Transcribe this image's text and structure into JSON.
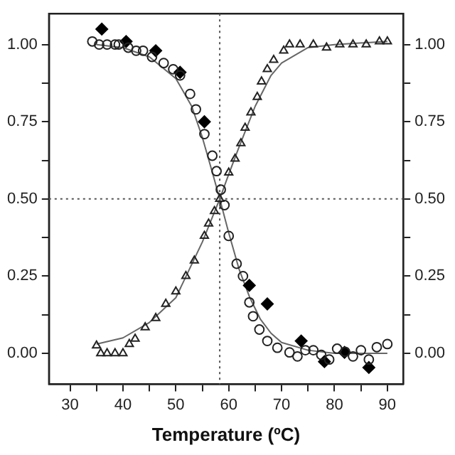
{
  "chart_data": {
    "type": "scatter",
    "xlabel": "Temperature (ºC)",
    "xlim": [
      26,
      93
    ],
    "xticks": [
      30,
      {
        "value": 35,
        "label": null
      },
      40,
      {
        "value": 45,
        "label": null
      },
      50,
      {
        "value": 55,
        "label": null
      },
      60,
      {
        "value": 65,
        "label": null
      },
      70,
      {
        "value": 75,
        "label": null
      },
      80,
      {
        "value": 85,
        "label": null
      },
      90
    ],
    "ylim": [
      -0.1,
      1.1
    ],
    "yticks": [
      {
        "value": 0,
        "label": "0.00"
      },
      {
        "value": 0.125,
        "label": null
      },
      {
        "value": 0.25,
        "label": "0.25"
      },
      {
        "value": 0.375,
        "label": null
      },
      {
        "value": 0.5,
        "label": "0.50"
      },
      {
        "value": 0.625,
        "label": null
      },
      {
        "value": 0.75,
        "label": "0.75"
      },
      {
        "value": 0.875,
        "label": null
      },
      {
        "value": 1,
        "label": "1.00"
      }
    ],
    "y2lim": [
      -0.1,
      1.1
    ],
    "y2ticks": [
      {
        "value": 0,
        "label": "0.00"
      },
      {
        "value": 0.125,
        "label": null
      },
      {
        "value": 0.25,
        "label": "0.25"
      },
      {
        "value": 0.375,
        "label": null
      },
      {
        "value": 0.5,
        "label": "0.50"
      },
      {
        "value": 0.625,
        "label": null
      },
      {
        "value": 0.75,
        "label": "0.75"
      },
      {
        "value": 0.875,
        "label": null
      },
      {
        "value": 1,
        "label": "1.00"
      }
    ],
    "grid": false,
    "legend": false,
    "ref_lines": [
      {
        "axis": "x",
        "value": 58.3,
        "line_style": "dotted",
        "color": "#555555"
      },
      {
        "axis": "y",
        "value": 0.5,
        "line_style": "dotted",
        "color": "#555555"
      }
    ],
    "series": [
      {
        "type": "line",
        "marker": "none",
        "color": "#666666",
        "x": [
          35,
          40,
          45,
          50,
          53,
          55,
          57,
          58.3,
          60,
          62,
          64,
          66,
          68,
          70,
          75,
          80,
          90
        ],
        "values": [
          1.0,
          0.99,
          0.96,
          0.89,
          0.8,
          0.7,
          0.58,
          0.5,
          0.39,
          0.27,
          0.18,
          0.11,
          0.065,
          0.035,
          0.01,
          0.0,
          0.0
        ]
      },
      {
        "type": "line",
        "marker": "none",
        "color": "#666666",
        "x": [
          35,
          40,
          45,
          50,
          55,
          58.3,
          60,
          62,
          65,
          68,
          70,
          75,
          80,
          90
        ],
        "values": [
          0.03,
          0.05,
          0.1,
          0.18,
          0.36,
          0.5,
          0.58,
          0.67,
          0.8,
          0.9,
          0.94,
          0.99,
          1.0,
          1.01
        ]
      },
      {
        "type": "scatter",
        "marker": "circle",
        "color": "#222222",
        "x": [
          34.2,
          35.5,
          37,
          38.5,
          39.2,
          41,
          42.5,
          43.8,
          45.5,
          47.7,
          49.5,
          50.8,
          52.7,
          53.8,
          55.4,
          56.9,
          57.7,
          58.5,
          59.2,
          60,
          61.5,
          62.7,
          63.9,
          64.6,
          65.8,
          67.3,
          69.2,
          71.5,
          73,
          74.5,
          76,
          77.5,
          79,
          80.5,
          82,
          83.5,
          85,
          86.5,
          88,
          90
        ],
        "values": [
          1.01,
          1.0,
          1.0,
          1.0,
          1.0,
          0.99,
          0.98,
          0.98,
          0.96,
          0.94,
          0.92,
          0.9,
          0.84,
          0.79,
          0.71,
          0.64,
          0.59,
          0.53,
          0.48,
          0.38,
          0.29,
          0.25,
          0.165,
          0.12,
          0.077,
          0.04,
          0.018,
          0.003,
          -0.01,
          0.01,
          0.01,
          -0.005,
          -0.02,
          0.015,
          0.005,
          -0.01,
          0.01,
          -0.02,
          0.02,
          0.03
        ]
      },
      {
        "type": "scatter",
        "marker": "triangle",
        "color": "#222222",
        "x": [
          35,
          35.8,
          37,
          38.5,
          40,
          41.2,
          42.3,
          44.2,
          46.2,
          48.1,
          50,
          51.9,
          53.5,
          55.4,
          56.2,
          57.3,
          58.3,
          60,
          61.2,
          62.3,
          63.1,
          64.2,
          65.4,
          66.2,
          67.3,
          68.5,
          70.4,
          71.5,
          73.5,
          76,
          78.5,
          81,
          83.5,
          86,
          88.5,
          90
        ],
        "values": [
          0.025,
          0.0,
          0.0,
          0.0,
          0.0,
          0.03,
          0.047,
          0.084,
          0.114,
          0.16,
          0.2,
          0.25,
          0.3,
          0.38,
          0.42,
          0.46,
          0.5,
          0.585,
          0.63,
          0.68,
          0.73,
          0.78,
          0.83,
          0.88,
          0.92,
          0.95,
          0.98,
          1.0,
          1.0,
          1.0,
          0.99,
          1.0,
          1.0,
          1.0,
          1.01,
          1.01
        ]
      },
      {
        "type": "scatter",
        "marker": "diamond",
        "color": "#000000",
        "x": [
          36,
          40.6,
          46.2,
          50.8,
          55.4,
          63.9,
          67.3,
          73.7,
          78.1,
          81.9,
          86.5
        ],
        "values": [
          1.05,
          1.01,
          0.98,
          0.91,
          0.75,
          0.22,
          0.16,
          0.04,
          -0.027,
          0.003,
          -0.046
        ]
      }
    ]
  }
}
